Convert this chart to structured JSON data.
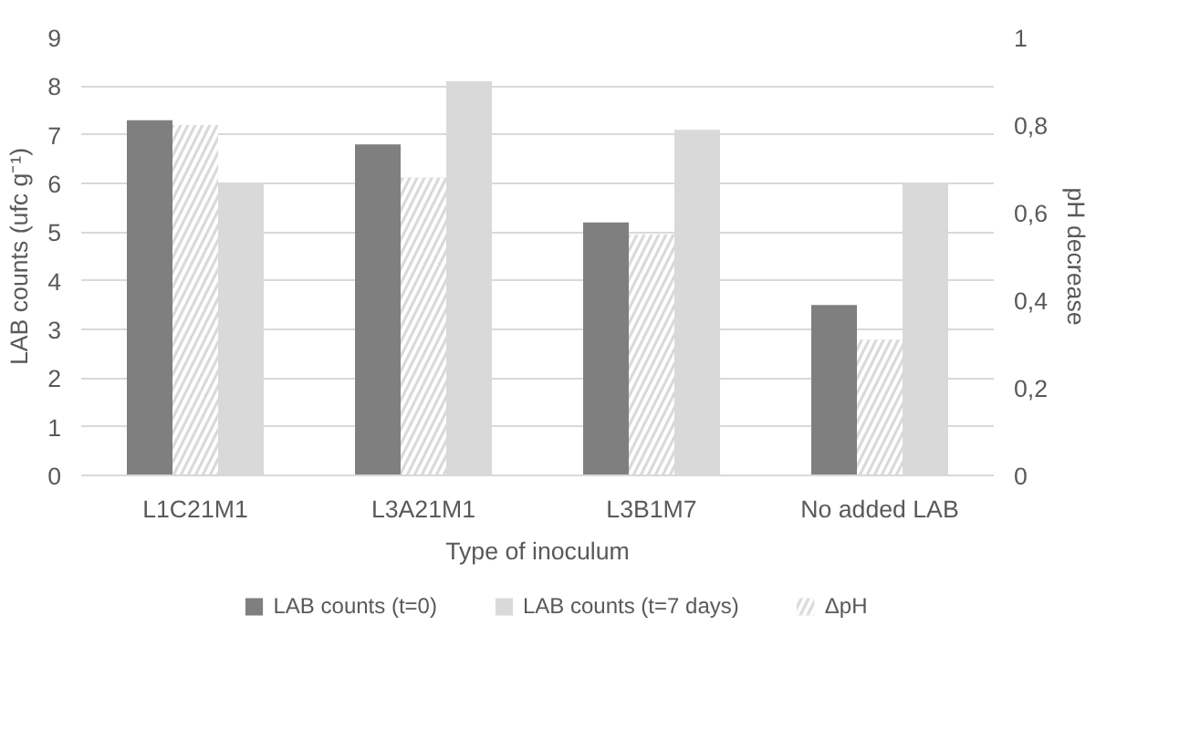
{
  "chart_data": {
    "type": "bar",
    "xlabel": "Type of inoculum",
    "ylabel": "LAB counts (ufc g⁻¹)",
    "y2label": "pH decrease",
    "categories": [
      "L1C21M1",
      "L3A21M1",
      "L3B1M7",
      "No added LAB"
    ],
    "series": [
      {
        "name": "LAB counts (t=0)",
        "color": "#7f7f7f",
        "values": [
          7.3,
          6.8,
          5.2,
          3.5
        ]
      },
      {
        "name": "LAB counts (t=7 days)",
        "color": "#d9d9d9",
        "values": [
          6.0,
          8.1,
          7.1,
          6.0
        ]
      },
      {
        "name": "ΔpH",
        "color": "#d9d9d9",
        "axis": "y2",
        "values": [
          0.8,
          0.68,
          0.55,
          0.31
        ]
      }
    ],
    "ylim": [
      0,
      9
    ],
    "yticks": [
      0,
      1,
      2,
      3,
      4,
      5,
      6,
      7,
      8,
      9
    ],
    "y2lim": [
      0,
      1
    ],
    "y2ticks": [
      0,
      {
        "value": 0.2,
        "label": "0,2"
      },
      {
        "value": 0.4,
        "label": "0,4"
      },
      {
        "value": 0.6,
        "label": "0,6"
      },
      {
        "value": 0.8,
        "label": "0,8"
      },
      1
    ],
    "grid": "y",
    "legend": "bottom"
  }
}
